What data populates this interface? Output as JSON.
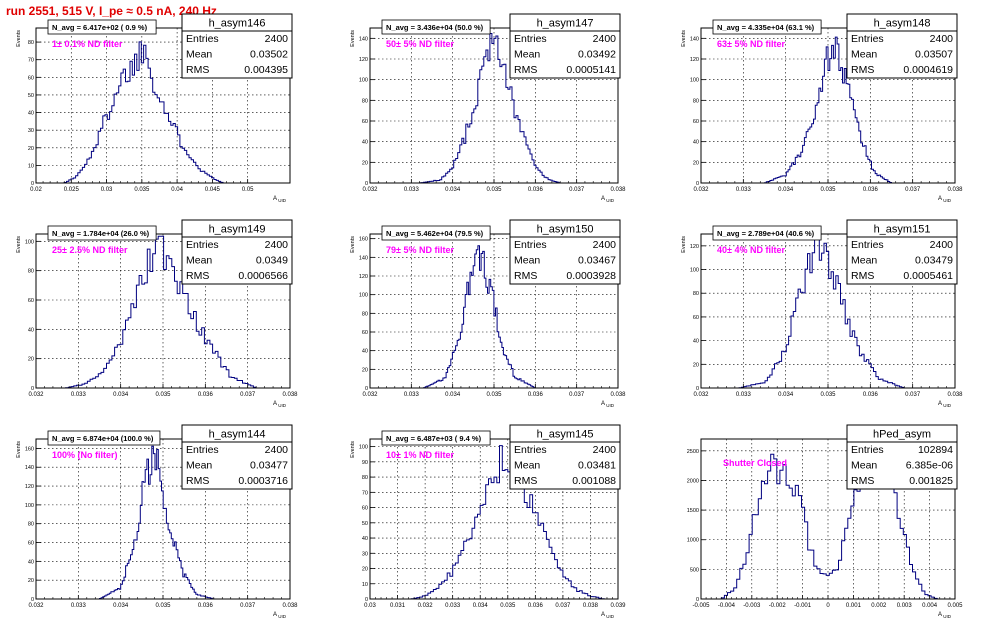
{
  "run_title": "run 2551,   515 V, I_pe ≈ 0.5 nA, 240 Hz",
  "stats_labels": {
    "entries": "Entries",
    "mean": "Mean",
    "rms": "RMS"
  },
  "colors": {
    "histogram": "#000080",
    "annotation": "#ff00ff",
    "title": "#e00000",
    "grid": "#000000"
  },
  "chart_data": [
    {
      "type": "histogram",
      "name": "h_asym146",
      "entries": "2400",
      "mean": "0.03502",
      "rms": "0.004395",
      "navg": "N_avg = 6.417e+02 ( 0.9 %)",
      "annotation": "1± 0.1% ND filter",
      "xlabel": "A_UID",
      "ylabel": "Events",
      "xlim": [
        0.02,
        0.056
      ],
      "ylim": [
        0,
        88
      ],
      "xticks": [
        0.02,
        0.025,
        0.03,
        0.035,
        0.04,
        0.045,
        0.05
      ],
      "xtick_labels": [
        "0.02",
        "0.025",
        "0.03",
        "0.035",
        "0.04",
        "0.045",
        "0.05"
      ],
      "yticks": [
        0,
        10,
        20,
        30,
        40,
        50,
        60,
        70,
        80
      ],
      "x_min": 0.024,
      "x_max": 0.0465,
      "x": [
        0.024,
        0.0255,
        0.027,
        0.0285,
        0.03,
        0.0315,
        0.033,
        0.0345,
        0.0352,
        0.036,
        0.0375,
        0.039,
        0.0405,
        0.042,
        0.0435,
        0.045,
        0.0465
      ],
      "y": [
        0,
        3,
        10,
        22,
        38,
        54,
        64,
        70,
        80,
        68,
        50,
        35,
        24,
        15,
        7,
        3,
        0
      ]
    },
    {
      "type": "histogram",
      "name": "h_asym147",
      "entries": "2400",
      "mean": "0.03492",
      "rms": "0.0005141",
      "navg": "N_avg = 3.436e+04 (50.0 %)",
      "annotation": "50± 5% ND filter",
      "xlabel": "A_UID",
      "ylabel": "Events",
      "xlim": [
        0.032,
        0.038
      ],
      "ylim": [
        0,
        150
      ],
      "xticks": [
        0.032,
        0.033,
        0.034,
        0.035,
        0.036,
        0.037,
        0.038
      ],
      "xtick_labels": [
        "0.032",
        "0.033",
        "0.034",
        "0.035",
        "0.036",
        "0.037",
        "0.038"
      ],
      "yticks": [
        0,
        20,
        40,
        60,
        80,
        100,
        120,
        140
      ],
      "x_min": 0.0332,
      "x_max": 0.0366,
      "x": [
        0.0332,
        0.0337,
        0.034,
        0.0343,
        0.0346,
        0.0348,
        0.035,
        0.0352,
        0.0354,
        0.0357,
        0.036,
        0.0363,
        0.0366
      ],
      "y": [
        0,
        3,
        15,
        45,
        85,
        125,
        140,
        115,
        85,
        45,
        15,
        4,
        0
      ]
    },
    {
      "type": "histogram",
      "name": "h_asym148",
      "entries": "2400",
      "mean": "0.03507",
      "rms": "0.0004619",
      "navg": "N_avg = 4.335e+04 (63.1 %)",
      "annotation": "63± 5% ND filter",
      "xlabel": "A_UID",
      "ylabel": "Events",
      "xlim": [
        0.032,
        0.038
      ],
      "ylim": [
        0,
        150
      ],
      "xticks": [
        0.032,
        0.033,
        0.034,
        0.035,
        0.036,
        0.037,
        0.038
      ],
      "xtick_labels": [
        "0.032",
        "0.033",
        "0.034",
        "0.035",
        "0.036",
        "0.037",
        "0.038"
      ],
      "yticks": [
        0,
        20,
        40,
        60,
        80,
        100,
        120,
        140
      ],
      "x_min": 0.0335,
      "x_max": 0.0365,
      "x": [
        0.0335,
        0.034,
        0.0343,
        0.0346,
        0.0349,
        0.0351,
        0.0353,
        0.0355,
        0.0358,
        0.0361,
        0.0365
      ],
      "y": [
        0,
        8,
        25,
        60,
        105,
        140,
        115,
        85,
        40,
        10,
        0
      ]
    },
    {
      "type": "histogram",
      "name": "h_asym149",
      "entries": "2400",
      "mean": "0.0349",
      "rms": "0.0006566",
      "navg": "N_avg = 1.784e+04 (26.0 %)",
      "annotation": "25± 2.5% ND filter",
      "xlabel": "A_UID",
      "ylabel": "Events",
      "xlim": [
        0.032,
        0.038
      ],
      "ylim": [
        0,
        105
      ],
      "xticks": [
        0.032,
        0.033,
        0.034,
        0.035,
        0.036,
        0.037,
        0.038
      ],
      "xtick_labels": [
        "0.032",
        "0.033",
        "0.034",
        "0.035",
        "0.036",
        "0.037",
        "0.038"
      ],
      "yticks": [
        0,
        20,
        40,
        60,
        80,
        100
      ],
      "x_min": 0.0327,
      "x_max": 0.0372,
      "x": [
        0.0327,
        0.0332,
        0.0336,
        0.034,
        0.0343,
        0.0346,
        0.0349,
        0.0352,
        0.0355,
        0.0358,
        0.0362,
        0.0366,
        0.0372
      ],
      "y": [
        0,
        3,
        12,
        30,
        55,
        80,
        98,
        85,
        65,
        45,
        25,
        8,
        0
      ]
    },
    {
      "type": "histogram",
      "name": "h_asym150",
      "entries": "2400",
      "mean": "0.03467",
      "rms": "0.0003928",
      "navg": "N_avg = 5.462e+04 (79.5 %)",
      "annotation": "79± 5% ND filter",
      "xlabel": "A_UID",
      "ylabel": "Events",
      "xlim": [
        0.032,
        0.038
      ],
      "ylim": [
        0,
        165
      ],
      "xticks": [
        0.032,
        0.033,
        0.034,
        0.035,
        0.036,
        0.037,
        0.038
      ],
      "xtick_labels": [
        "0.032",
        "0.033",
        "0.034",
        "0.035",
        "0.036",
        "0.037",
        "0.038"
      ],
      "yticks": [
        0,
        20,
        40,
        60,
        80,
        100,
        120,
        140,
        160
      ],
      "x_min": 0.0333,
      "x_max": 0.036,
      "x": [
        0.0333,
        0.0338,
        0.0341,
        0.0344,
        0.0346,
        0.0348,
        0.035,
        0.0352,
        0.0355,
        0.036
      ],
      "y": [
        0,
        10,
        45,
        110,
        150,
        130,
        90,
        45,
        12,
        0
      ]
    },
    {
      "type": "histogram",
      "name": "h_asym151",
      "entries": "2400",
      "mean": "0.03479",
      "rms": "0.0005461",
      "navg": "N_avg = 2.789e+04 (40.6 %)",
      "annotation": "40± 4% ND filter",
      "xlabel": "A_UID",
      "ylabel": "Events",
      "xlim": [
        0.032,
        0.038
      ],
      "ylim": [
        0,
        130
      ],
      "xticks": [
        0.032,
        0.033,
        0.034,
        0.035,
        0.036,
        0.037,
        0.038
      ],
      "xtick_labels": [
        "0.032",
        "0.033",
        "0.034",
        "0.035",
        "0.036",
        "0.037",
        "0.038"
      ],
      "yticks": [
        0,
        20,
        40,
        60,
        80,
        100,
        120
      ],
      "x_min": 0.0329,
      "x_max": 0.0368,
      "x": [
        0.0329,
        0.0335,
        0.0339,
        0.0342,
        0.0345,
        0.0348,
        0.035,
        0.0353,
        0.0357,
        0.0362,
        0.0368
      ],
      "y": [
        0,
        5,
        25,
        60,
        100,
        120,
        105,
        75,
        35,
        8,
        0
      ]
    },
    {
      "type": "histogram",
      "name": "h_asym144",
      "entries": "2400",
      "mean": "0.03477",
      "rms": "0.0003716",
      "navg": "N_avg = 6.874e+04 (100.0 %)",
      "annotation": "100% (No filter)",
      "xlabel": "A_UID",
      "ylabel": "Events",
      "xlim": [
        0.032,
        0.038
      ],
      "ylim": [
        0,
        170
      ],
      "xticks": [
        0.032,
        0.033,
        0.034,
        0.035,
        0.036,
        0.037,
        0.038
      ],
      "xtick_labels": [
        "0.032",
        "0.033",
        "0.034",
        "0.035",
        "0.036",
        "0.037",
        "0.038"
      ],
      "yticks": [
        0,
        20,
        40,
        60,
        80,
        100,
        120,
        140,
        160
      ],
      "x_min": 0.0335,
      "x_max": 0.0362,
      "x": [
        0.0335,
        0.034,
        0.0343,
        0.0346,
        0.0348,
        0.035,
        0.0352,
        0.0355,
        0.0358,
        0.0362
      ],
      "y": [
        0,
        12,
        55,
        130,
        160,
        110,
        70,
        25,
        5,
        0
      ]
    },
    {
      "type": "histogram",
      "name": "h_asym145",
      "entries": "2400",
      "mean": "0.03481",
      "rms": "0.001088",
      "navg": "N_avg = 6.487e+03 ( 9.4 %)",
      "annotation": "10± 1% ND filter",
      "xlabel": "A_UID",
      "ylabel": "Events",
      "xlim": [
        0.03,
        0.039
      ],
      "ylim": [
        0,
        105
      ],
      "xticks": [
        0.03,
        0.031,
        0.032,
        0.033,
        0.034,
        0.035,
        0.036,
        0.037,
        0.038,
        0.039
      ],
      "xtick_labels": [
        "0.03",
        "0.031",
        "0.032",
        "0.033",
        "0.034",
        "0.035",
        "0.036",
        "0.037",
        "0.038",
        "0.039"
      ],
      "yticks": [
        0,
        10,
        20,
        30,
        40,
        50,
        60,
        70,
        80,
        90,
        100
      ],
      "x_min": 0.0315,
      "x_max": 0.0385,
      "x": [
        0.0315,
        0.032,
        0.0325,
        0.033,
        0.0335,
        0.034,
        0.0345,
        0.0348,
        0.035,
        0.0355,
        0.036,
        0.0365,
        0.037,
        0.0375,
        0.038,
        0.0385
      ],
      "y": [
        0,
        2,
        8,
        18,
        35,
        55,
        78,
        95,
        85,
        75,
        55,
        35,
        15,
        6,
        2,
        0
      ]
    },
    {
      "type": "histogram",
      "name": "hPed_asym",
      "entries": "102894",
      "mean": "6.385e-06",
      "rms": "0.001825",
      "navg": "",
      "annotation": "Shutter Closed",
      "xlabel": "A_UID",
      "ylabel": "",
      "xlim": [
        -0.005,
        0.005
      ],
      "ylim": [
        0,
        2700
      ],
      "xticks": [
        -0.005,
        -0.004,
        -0.003,
        -0.002,
        -0.001,
        0,
        0.001,
        0.002,
        0.003,
        0.004,
        0.005
      ],
      "xtick_labels": [
        "-0.005",
        "-0.004",
        "-0.003",
        "-0.002",
        "-0.001",
        "0",
        "0.001",
        "0.002",
        "0.003",
        "0.004",
        "0.005"
      ],
      "yticks": [
        0,
        500,
        1000,
        1500,
        2000,
        2500
      ],
      "x_min": -0.0042,
      "x_max": 0.0043,
      "x": [
        -0.0042,
        -0.0036,
        -0.003,
        -0.0026,
        -0.0023,
        -0.002,
        -0.0017,
        -0.0014,
        -0.001,
        -0.0006,
        -0.0003,
        0,
        0.0003,
        0.0006,
        0.001,
        0.0015,
        0.0019,
        0.0022,
        0.0025,
        0.0028,
        0.0033,
        0.0038,
        0.0043
      ],
      "y": [
        0,
        200,
        1100,
        1900,
        2450,
        2000,
        2150,
        2000,
        1400,
        700,
        450,
        380,
        450,
        900,
        1700,
        2200,
        2300,
        2350,
        2100,
        1500,
        500,
        80,
        0
      ]
    }
  ]
}
